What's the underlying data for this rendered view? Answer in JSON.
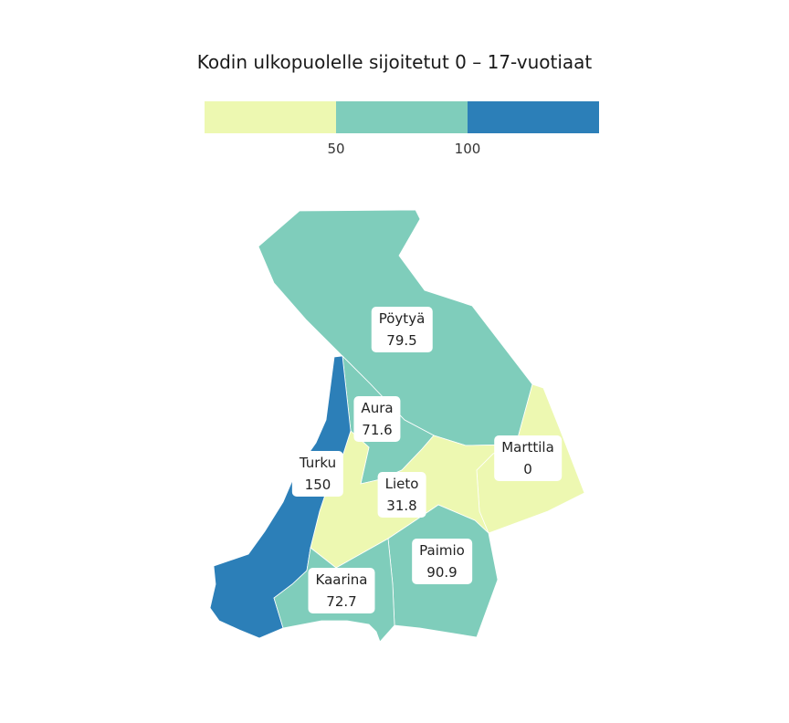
{
  "title": "Kodin ulkopuolelle sijoitetut 0 – 17-vuotiaat",
  "legend": {
    "colors": [
      "#edf8b1",
      "#7fcdbb",
      "#2c7fb8"
    ],
    "ticks": [
      "50",
      "100"
    ]
  },
  "municipalities": [
    {
      "id": "poytya",
      "name": "Pöytyä",
      "value": "79.5",
      "color": "#7fcdbb"
    },
    {
      "id": "aura",
      "name": "Aura",
      "value": "71.6",
      "color": "#7fcdbb"
    },
    {
      "id": "marttila",
      "name": "Marttila",
      "value": "0",
      "color": "#edf8b1"
    },
    {
      "id": "turku",
      "name": "Turku",
      "value": "150",
      "color": "#2c7fb8"
    },
    {
      "id": "lieto",
      "name": "Lieto",
      "value": "31.8",
      "color": "#edf8b1"
    },
    {
      "id": "paimio",
      "name": "Paimio",
      "value": "90.9",
      "color": "#7fcdbb"
    },
    {
      "id": "kaarina",
      "name": "Kaarina",
      "value": "72.7",
      "color": "#7fcdbb"
    }
  ]
}
